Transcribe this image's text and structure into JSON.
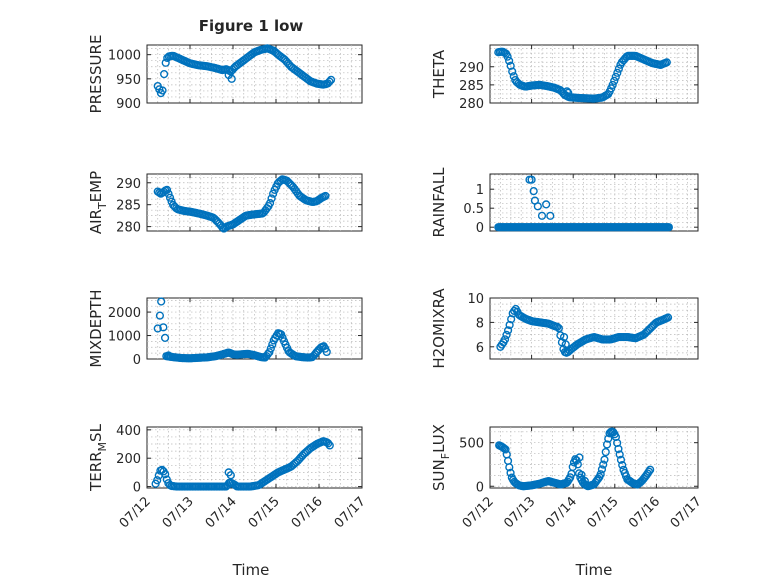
{
  "figure": {
    "title": "Figure 1 low"
  },
  "x_axis": {
    "label": "Time",
    "ticks": [
      {
        "value": 0,
        "label": "07/12"
      },
      {
        "value": 1,
        "label": "07/13"
      },
      {
        "value": 2,
        "label": "07/14"
      },
      {
        "value": 3,
        "label": "07/15"
      },
      {
        "value": 4,
        "label": "07/16"
      },
      {
        "value": 5,
        "label": "07/17"
      }
    ],
    "range": [
      0,
      5
    ]
  },
  "colors": {
    "series": "#0072bd",
    "axis": "#262626",
    "grid": "#b8b8b8"
  },
  "chart_data": [
    {
      "type": "scatter",
      "column": "left",
      "title": "Figure 1 low",
      "ylabel": "PRESSURE",
      "ylabel_sub": null,
      "ylim": [
        900,
        1020
      ],
      "yticks": [
        900,
        950,
        1000
      ],
      "grid": true,
      "legend": "none",
      "anchors": [
        [
          0.25,
          935
        ],
        [
          0.28,
          930
        ],
        [
          0.32,
          920
        ],
        [
          0.36,
          925
        ],
        [
          0.38,
          945
        ],
        [
          0.42,
          978
        ],
        [
          0.46,
          992
        ],
        [
          0.5,
          996
        ],
        [
          0.6,
          998
        ],
        [
          0.7,
          994
        ],
        [
          0.8,
          990
        ],
        [
          1.0,
          982
        ],
        [
          1.2,
          978
        ],
        [
          1.4,
          976
        ],
        [
          1.6,
          972
        ],
        [
          1.75,
          968
        ],
        [
          1.85,
          970
        ],
        [
          1.95,
          965
        ],
        [
          2.05,
          975
        ],
        [
          2.2,
          985
        ],
        [
          2.35,
          995
        ],
        [
          2.5,
          1005
        ],
        [
          2.65,
          1010
        ],
        [
          2.8,
          1013
        ],
        [
          2.95,
          1008
        ],
        [
          3.05,
          1000
        ],
        [
          3.2,
          990
        ],
        [
          3.35,
          975
        ],
        [
          3.5,
          965
        ],
        [
          3.65,
          955
        ],
        [
          3.8,
          945
        ],
        [
          3.95,
          940
        ],
        [
          4.1,
          938
        ],
        [
          4.2,
          940
        ],
        [
          4.28,
          948
        ]
      ],
      "extra": [
        [
          1.9,
          958
        ],
        [
          1.97,
          950
        ]
      ],
      "count": 110
    },
    {
      "type": "scatter",
      "column": "right",
      "ylabel": "THETA",
      "ylabel_sub": null,
      "ylim": [
        280,
        296
      ],
      "yticks": [
        280,
        285,
        290
      ],
      "grid": true,
      "legend": "none",
      "anchors": [
        [
          0.2,
          294
        ],
        [
          0.3,
          294.2
        ],
        [
          0.4,
          293.5
        ],
        [
          0.48,
          291
        ],
        [
          0.55,
          288
        ],
        [
          0.62,
          286
        ],
        [
          0.72,
          285
        ],
        [
          0.85,
          284.5
        ],
        [
          1.0,
          284.8
        ],
        [
          1.2,
          285
        ],
        [
          1.4,
          284.6
        ],
        [
          1.55,
          284.2
        ],
        [
          1.7,
          283.5
        ],
        [
          1.8,
          282.2
        ],
        [
          1.9,
          281.6
        ],
        [
          2.1,
          281.4
        ],
        [
          2.3,
          281.3
        ],
        [
          2.5,
          281.2
        ],
        [
          2.7,
          281.5
        ],
        [
          2.85,
          282.5
        ],
        [
          2.95,
          285
        ],
        [
          3.05,
          288
        ],
        [
          3.15,
          291
        ],
        [
          3.3,
          293
        ],
        [
          3.5,
          293
        ],
        [
          3.7,
          292
        ],
        [
          3.9,
          291
        ],
        [
          4.1,
          290.5
        ],
        [
          4.25,
          291.2
        ]
      ],
      "extra": [
        [
          1.85,
          283.2
        ],
        [
          1.88,
          282.8
        ]
      ],
      "count": 110
    },
    {
      "type": "scatter",
      "column": "left",
      "ylabel": "AIR",
      "ylabel_sub": "T",
      "ylabel_suffix": "EMP",
      "ylim": [
        279,
        292
      ],
      "yticks": [
        280,
        285,
        290
      ],
      "grid": true,
      "legend": "none",
      "anchors": [
        [
          0.25,
          288
        ],
        [
          0.32,
          287.5
        ],
        [
          0.4,
          288
        ],
        [
          0.46,
          288.5
        ],
        [
          0.52,
          287
        ],
        [
          0.6,
          285
        ],
        [
          0.7,
          284
        ],
        [
          0.85,
          283.6
        ],
        [
          1.0,
          283.4
        ],
        [
          1.2,
          283
        ],
        [
          1.4,
          282.5
        ],
        [
          1.55,
          282
        ],
        [
          1.7,
          280.5
        ],
        [
          1.78,
          279.5
        ],
        [
          1.85,
          280
        ],
        [
          2.0,
          280.5
        ],
        [
          2.15,
          281.5
        ],
        [
          2.3,
          282.5
        ],
        [
          2.5,
          282.8
        ],
        [
          2.7,
          283
        ],
        [
          2.85,
          285
        ],
        [
          2.95,
          288
        ],
        [
          3.05,
          290
        ],
        [
          3.15,
          290.8
        ],
        [
          3.25,
          290.5
        ],
        [
          3.4,
          289
        ],
        [
          3.55,
          287
        ],
        [
          3.7,
          286
        ],
        [
          3.85,
          285.6
        ],
        [
          3.95,
          285.8
        ],
        [
          4.05,
          286.5
        ],
        [
          4.15,
          287
        ]
      ],
      "extra": [],
      "count": 110
    },
    {
      "type": "scatter",
      "column": "right",
      "ylabel": "RAINFALL",
      "ylabel_sub": null,
      "ylim": [
        -0.1,
        1.4
      ],
      "yticks": [
        0,
        0.5,
        1
      ],
      "ytick_labels": [
        "0",
        "0.5",
        "1"
      ],
      "grid": true,
      "legend": "none",
      "anchors": [
        [
          0.2,
          0
        ],
        [
          4.3,
          0
        ]
      ],
      "extra": [
        [
          0.95,
          1.25
        ],
        [
          1.0,
          1.25
        ],
        [
          1.05,
          0.95
        ],
        [
          1.08,
          0.7
        ],
        [
          1.15,
          0.55
        ],
        [
          1.25,
          0.3
        ],
        [
          1.35,
          0.6
        ],
        [
          1.45,
          0.3
        ]
      ],
      "count": 150
    },
    {
      "type": "scatter",
      "column": "left",
      "ylabel": "MIXDEPTH",
      "ylabel_sub": null,
      "ylim": [
        0,
        2600
      ],
      "yticks": [
        0,
        1000,
        2000
      ],
      "grid": true,
      "legend": "none",
      "anchors": [
        [
          0.45,
          120
        ],
        [
          0.6,
          80
        ],
        [
          0.8,
          40
        ],
        [
          1.0,
          30
        ],
        [
          1.2,
          50
        ],
        [
          1.4,
          70
        ],
        [
          1.6,
          120
        ],
        [
          1.8,
          220
        ],
        [
          1.9,
          280
        ],
        [
          2.0,
          200
        ],
        [
          2.1,
          180
        ],
        [
          2.2,
          200
        ],
        [
          2.35,
          220
        ],
        [
          2.5,
          160
        ],
        [
          2.65,
          80
        ],
        [
          2.75,
          60
        ],
        [
          2.85,
          300
        ],
        [
          2.95,
          800
        ],
        [
          3.05,
          1100
        ],
        [
          3.12,
          1050
        ],
        [
          3.2,
          700
        ],
        [
          3.3,
          300
        ],
        [
          3.45,
          120
        ],
        [
          3.6,
          80
        ],
        [
          3.75,
          60
        ],
        [
          3.85,
          80
        ],
        [
          3.95,
          300
        ],
        [
          4.05,
          500
        ],
        [
          4.12,
          550
        ],
        [
          4.18,
          300
        ]
      ],
      "extra": [
        [
          0.25,
          1300
        ],
        [
          0.3,
          1850
        ],
        [
          0.33,
          2450
        ],
        [
          0.38,
          1350
        ],
        [
          0.42,
          900
        ],
        [
          0.5,
          150
        ],
        [
          0.55,
          100
        ]
      ],
      "count": 110
    },
    {
      "type": "scatter",
      "column": "right",
      "ylabel": "H2OMIXRA",
      "ylabel_sub": null,
      "ylim": [
        5,
        10
      ],
      "yticks": [
        6,
        8,
        10
      ],
      "grid": true,
      "legend": "none",
      "anchors": [
        [
          0.25,
          6
        ],
        [
          0.35,
          6.5
        ],
        [
          0.45,
          7.5
        ],
        [
          0.55,
          8.8
        ],
        [
          0.62,
          9.1
        ],
        [
          0.7,
          8.6
        ],
        [
          0.85,
          8.3
        ],
        [
          1.0,
          8.1
        ],
        [
          1.2,
          8
        ],
        [
          1.4,
          7.9
        ],
        [
          1.55,
          7.7
        ],
        [
          1.65,
          7.6
        ],
        [
          1.72,
          6.5
        ],
        [
          1.78,
          5.6
        ],
        [
          1.85,
          5.5
        ],
        [
          1.95,
          5.8
        ],
        [
          2.1,
          6.2
        ],
        [
          2.3,
          6.6
        ],
        [
          2.5,
          6.8
        ],
        [
          2.7,
          6.6
        ],
        [
          2.9,
          6.6
        ],
        [
          3.1,
          6.8
        ],
        [
          3.3,
          6.8
        ],
        [
          3.5,
          6.7
        ],
        [
          3.7,
          7
        ],
        [
          3.85,
          7.5
        ],
        [
          4.0,
          8
        ],
        [
          4.15,
          8.2
        ],
        [
          4.28,
          8.4
        ]
      ],
      "extra": [
        [
          1.78,
          6.8
        ],
        [
          1.82,
          6.2
        ]
      ],
      "count": 110
    },
    {
      "type": "scatter",
      "column": "left",
      "ylabel": "TERR",
      "ylabel_sub": "M",
      "ylabel_suffix": "SL",
      "ylim": [
        -10,
        420
      ],
      "yticks": [
        0,
        200,
        400
      ],
      "grid": true,
      "legend": "none",
      "anchors": [
        [
          0.2,
          20
        ],
        [
          0.26,
          60
        ],
        [
          0.3,
          110
        ],
        [
          0.36,
          120
        ],
        [
          0.42,
          90
        ],
        [
          0.48,
          30
        ],
        [
          0.55,
          5
        ],
        [
          0.7,
          0
        ],
        [
          1.0,
          0
        ],
        [
          1.5,
          0
        ],
        [
          1.85,
          0
        ],
        [
          1.92,
          30
        ],
        [
          2.0,
          20
        ],
        [
          2.1,
          0
        ],
        [
          2.4,
          0
        ],
        [
          2.6,
          10
        ],
        [
          2.75,
          40
        ],
        [
          2.9,
          70
        ],
        [
          3.05,
          100
        ],
        [
          3.2,
          120
        ],
        [
          3.35,
          140
        ],
        [
          3.5,
          180
        ],
        [
          3.65,
          230
        ],
        [
          3.8,
          270
        ],
        [
          3.95,
          300
        ],
        [
          4.1,
          320
        ],
        [
          4.2,
          310
        ],
        [
          4.25,
          290
        ]
      ],
      "extra": [
        [
          1.9,
          100
        ],
        [
          1.95,
          80
        ]
      ],
      "count": 110
    },
    {
      "type": "scatter",
      "column": "right",
      "ylabel": "SUN",
      "ylabel_sub": "F",
      "ylabel_suffix": "LUX",
      "ylim": [
        -20,
        680
      ],
      "yticks": [
        0,
        500
      ],
      "grid": true,
      "legend": "none",
      "anchors": [
        [
          0.22,
          470
        ],
        [
          0.3,
          450
        ],
        [
          0.38,
          420
        ],
        [
          0.43,
          300
        ],
        [
          0.48,
          180
        ],
        [
          0.53,
          90
        ],
        [
          0.6,
          40
        ],
        [
          0.7,
          10
        ],
        [
          0.8,
          0
        ],
        [
          1.0,
          10
        ],
        [
          1.2,
          30
        ],
        [
          1.4,
          60
        ],
        [
          1.55,
          40
        ],
        [
          1.7,
          20
        ],
        [
          1.85,
          40
        ],
        [
          1.95,
          120
        ],
        [
          2.0,
          250
        ],
        [
          2.05,
          310
        ],
        [
          2.1,
          290
        ],
        [
          2.15,
          120
        ],
        [
          2.25,
          30
        ],
        [
          2.35,
          0
        ],
        [
          2.5,
          20
        ],
        [
          2.65,
          120
        ],
        [
          2.75,
          300
        ],
        [
          2.82,
          500
        ],
        [
          2.88,
          620
        ],
        [
          2.95,
          630
        ],
        [
          3.02,
          580
        ],
        [
          3.1,
          400
        ],
        [
          3.2,
          200
        ],
        [
          3.3,
          80
        ],
        [
          3.45,
          30
        ],
        [
          3.55,
          20
        ],
        [
          3.65,
          60
        ],
        [
          3.75,
          120
        ],
        [
          3.85,
          190
        ]
      ],
      "extra": [
        [
          2.15,
          330
        ],
        [
          2.2,
          130
        ],
        [
          2.28,
          60
        ]
      ],
      "count": 120
    }
  ]
}
